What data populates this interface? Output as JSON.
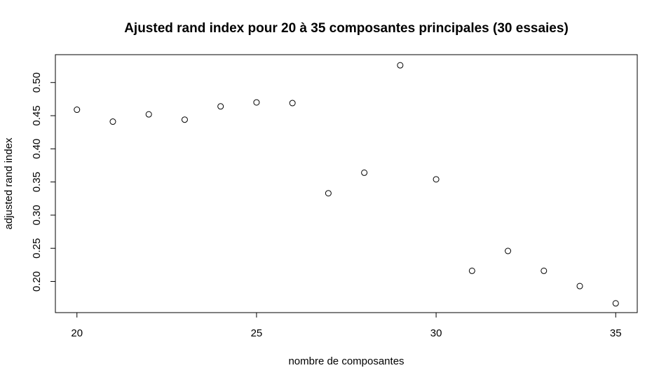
{
  "chart_data": {
    "type": "scatter",
    "title": "Ajusted rand index pour 20 à 35 composantes principales (30 essaies)",
    "xlabel": "nombre de composantes",
    "ylabel": "adjusted rand index",
    "xlim": [
      19.4,
      35.6
    ],
    "ylim": [
      0.153,
      0.542
    ],
    "x_ticks": [
      20,
      25,
      30,
      35
    ],
    "x_tick_labels": [
      "20",
      "25",
      "30",
      "35"
    ],
    "y_ticks": [
      0.2,
      0.25,
      0.3,
      0.35,
      0.4,
      0.45,
      0.5
    ],
    "y_tick_labels": [
      "0.20",
      "0.25",
      "0.30",
      "0.35",
      "0.40",
      "0.45",
      "0.50"
    ],
    "grid": false,
    "marker": "open-circle",
    "series": [
      {
        "name": "adjusted rand index",
        "x": [
          20,
          21,
          22,
          23,
          24,
          25,
          26,
          27,
          28,
          29,
          30,
          31,
          32,
          33,
          34,
          35
        ],
        "y": [
          0.459,
          0.441,
          0.452,
          0.444,
          0.464,
          0.47,
          0.469,
          0.333,
          0.364,
          0.526,
          0.354,
          0.216,
          0.246,
          0.216,
          0.193,
          0.167
        ]
      }
    ]
  }
}
